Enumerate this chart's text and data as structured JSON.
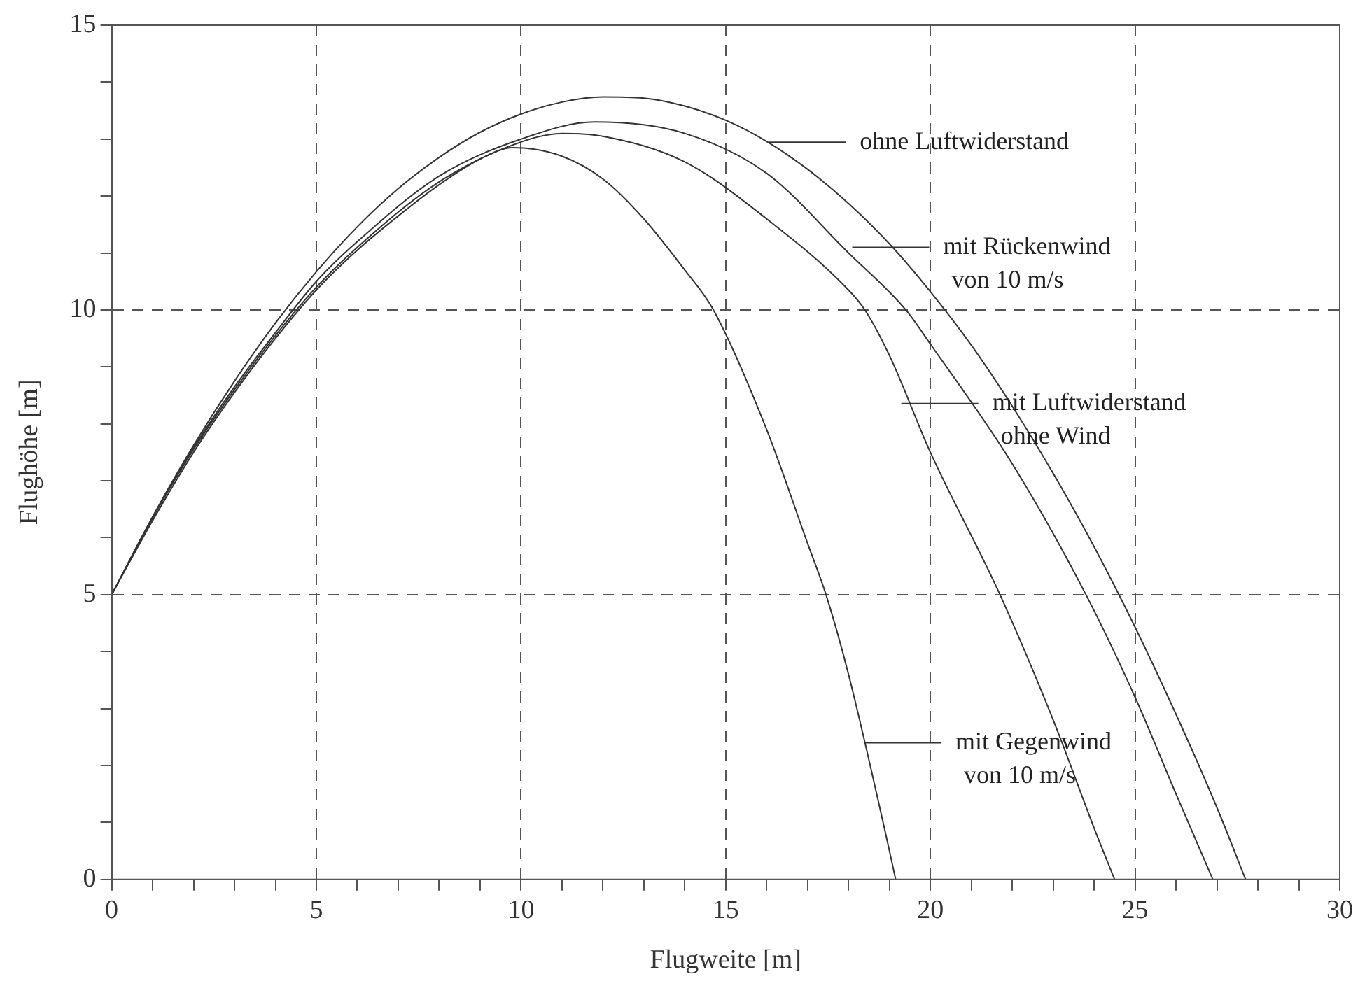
{
  "chart_data": {
    "type": "line",
    "xlabel": "Flugweite [m]",
    "ylabel": "Flughöhe [m]",
    "xlim": [
      0,
      30
    ],
    "ylim": [
      0,
      15
    ],
    "xticks": [
      0,
      {
        "value": 1,
        "label": null
      },
      {
        "value": 2,
        "label": null
      },
      {
        "value": 3,
        "label": null
      },
      {
        "value": 4,
        "label": null
      },
      5,
      {
        "value": 6,
        "label": null
      },
      {
        "value": 7,
        "label": null
      },
      {
        "value": 8,
        "label": null
      },
      {
        "value": 9,
        "label": null
      },
      10,
      {
        "value": 11,
        "label": null
      },
      {
        "value": 12,
        "label": null
      },
      {
        "value": 13,
        "label": null
      },
      {
        "value": 14,
        "label": null
      },
      15,
      {
        "value": 16,
        "label": null
      },
      {
        "value": 17,
        "label": null
      },
      {
        "value": 18,
        "label": null
      },
      {
        "value": 19,
        "label": null
      },
      20,
      {
        "value": 21,
        "label": null
      },
      {
        "value": 22,
        "label": null
      },
      {
        "value": 23,
        "label": null
      },
      {
        "value": 24,
        "label": null
      },
      25,
      {
        "value": 26,
        "label": null
      },
      {
        "value": 27,
        "label": null
      },
      {
        "value": 28,
        "label": null
      },
      {
        "value": 29,
        "label": null
      },
      30
    ],
    "yticks": [
      0,
      {
        "value": 1,
        "label": null
      },
      {
        "value": 2,
        "label": null
      },
      {
        "value": 3,
        "label": null
      },
      {
        "value": 4,
        "label": null
      },
      5,
      {
        "value": 6,
        "label": null
      },
      {
        "value": 7,
        "label": null
      },
      {
        "value": 8,
        "label": null
      },
      {
        "value": 9,
        "label": null
      },
      10,
      {
        "value": 11,
        "label": null
      },
      {
        "value": 12,
        "label": null
      },
      {
        "value": 13,
        "label": null
      },
      {
        "value": 14,
        "label": null
      },
      15
    ],
    "grid": true,
    "marker": "none",
    "line_style": "solid",
    "series": [
      {
        "color": "#333333",
        "x": [
          0,
          1,
          2,
          3,
          4,
          5,
          6,
          7,
          8,
          9,
          10,
          11,
          12,
          13,
          14,
          15,
          16,
          17,
          18,
          19,
          20,
          21,
          22,
          23,
          24,
          25,
          26,
          27,
          27.7
        ],
        "values": [
          5,
          6.37,
          7.62,
          8.75,
          9.77,
          10.67,
          11.46,
          12.13,
          12.68,
          13.12,
          13.44,
          13.65,
          13.74,
          13.72,
          13.58,
          13.33,
          12.96,
          12.47,
          11.87,
          11.16,
          10.32,
          9.38,
          8.31,
          7.13,
          5.84,
          4.43,
          2.9,
          1.26,
          0
        ]
      },
      {
        "color": "#333333",
        "x": [
          0,
          1,
          2,
          3,
          4,
          5,
          6,
          8,
          10,
          11.8,
          14,
          16,
          18,
          19.4,
          20,
          22,
          23.8,
          25,
          26,
          26.9
        ],
        "values": [
          5,
          6.35,
          7.58,
          8.65,
          9.6,
          10.5,
          11.2,
          12.35,
          13,
          13.3,
          13.1,
          12.4,
          11,
          10,
          9.4,
          7.3,
          5,
          3.2,
          1.5,
          0
        ]
      },
      {
        "color": "#333333",
        "x": [
          0,
          1,
          2,
          3,
          4,
          5,
          6,
          8,
          10,
          11,
          12,
          14,
          16,
          18,
          18.4,
          19,
          20,
          21.7,
          23,
          24,
          24.5
        ],
        "values": [
          5,
          6.35,
          7.55,
          8.6,
          9.55,
          10.4,
          11.1,
          12.25,
          12.95,
          13.1,
          13.05,
          12.6,
          11.6,
          10.35,
          10,
          9.2,
          7.5,
          5,
          2.8,
          0.9,
          0
        ]
      },
      {
        "color": "#333333",
        "x": [
          0,
          1,
          2,
          3,
          4,
          5,
          6,
          7,
          8,
          9,
          9.8,
          11,
          12,
          13,
          14,
          14.7,
          16,
          17,
          17.45,
          18,
          19,
          19.15
        ],
        "values": [
          5,
          6.3,
          7.5,
          8.55,
          9.5,
          10.35,
          11.05,
          11.65,
          12.2,
          12.65,
          12.85,
          12.7,
          12.3,
          11.6,
          10.7,
          10,
          7.9,
          5.9,
          5,
          3.6,
          0.5,
          0
        ]
      }
    ],
    "annotations": [
      "ohne Luftwiderstand",
      "mit Rückenwind\nvon 10 m/s",
      "mit Luftwiderstand\nohne Wind",
      "mit Gegenwind\nvon 10 m/s"
    ]
  }
}
